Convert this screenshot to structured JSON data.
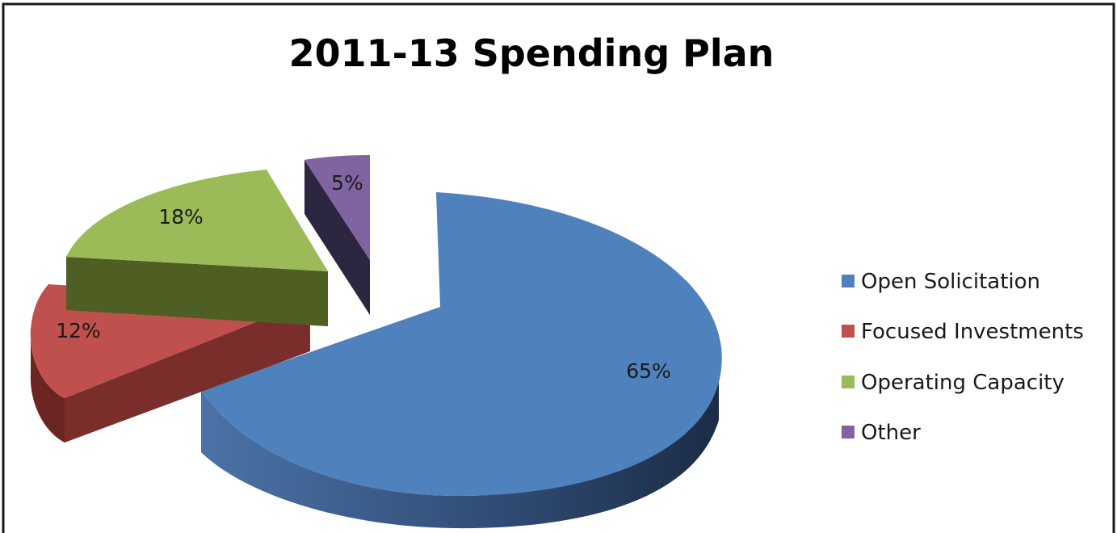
{
  "chart_data": {
    "type": "pie",
    "title": "2011-13 Spending Plan",
    "three_d": true,
    "exploded": true,
    "legend_position": "right",
    "slices": [
      {
        "name": "Open Solicitation",
        "value": 65,
        "label": "65%",
        "color": "#4f81bd"
      },
      {
        "name": "Focused Investments",
        "value": 12,
        "label": "12%",
        "color": "#c0504d"
      },
      {
        "name": "Operating Capacity",
        "value": 18,
        "label": "18%",
        "color": "#9bbb59"
      },
      {
        "name": "Other",
        "value": 5,
        "label": "5%",
        "color": "#8064a2"
      }
    ]
  }
}
